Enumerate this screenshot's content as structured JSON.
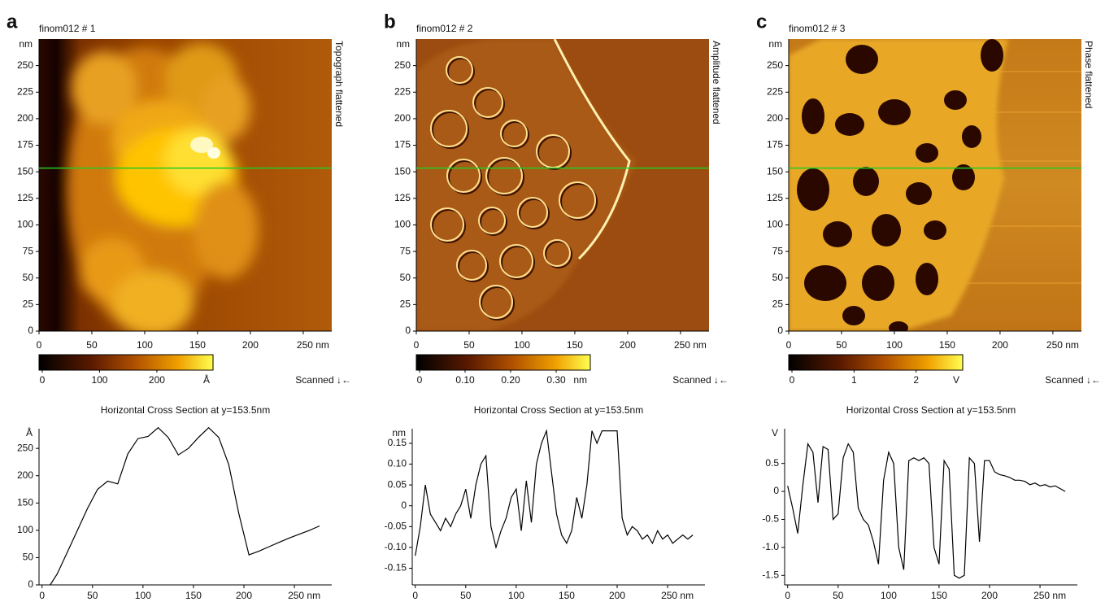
{
  "chart_data": [
    {
      "type": "image",
      "panel": "a",
      "title": "finom012 # 1",
      "side_label": "Topograph flattened",
      "y_unit": "nm",
      "xlim": [
        0,
        277
      ],
      "ylim": [
        0,
        275
      ],
      "xticks": [
        0,
        50,
        100,
        150,
        200,
        {
          "value": 250,
          "label": "250 nm"
        }
      ],
      "yticks": [
        0,
        25,
        50,
        75,
        100,
        125,
        150,
        175,
        200,
        225,
        250
      ],
      "marker_y": 153.5,
      "marker_color": "#22cc22",
      "colorbar": {
        "lim": [
          0,
          298
        ],
        "ticks": [
          0,
          100,
          200
        ],
        "unit": "Å"
      },
      "scan_label": "Scanned ↓←"
    },
    {
      "type": "line",
      "title": "Horizontal Cross Section at y=153.5nm",
      "y_unit": "Å",
      "color": "#000000",
      "xlim": [
        -3,
        287
      ],
      "ylim": [
        0,
        286
      ],
      "xticks": [
        0,
        50,
        100,
        150,
        200,
        {
          "value": 250,
          "label": "250 nm"
        }
      ],
      "yticks": [
        0,
        50,
        100,
        150,
        200,
        250
      ],
      "x": [
        8,
        15,
        25,
        35,
        45,
        55,
        65,
        75,
        85,
        95,
        105,
        115,
        125,
        135,
        145,
        155,
        165,
        175,
        185,
        195,
        205,
        215,
        225,
        235,
        245,
        255,
        265,
        275
      ],
      "values": [
        0,
        20,
        60,
        100,
        140,
        175,
        190,
        185,
        240,
        268,
        272,
        288,
        270,
        238,
        250,
        270,
        288,
        270,
        220,
        130,
        55,
        62,
        70,
        78,
        86,
        93,
        100,
        108
      ]
    },
    {
      "type": "image",
      "panel": "b",
      "title": "finom012 # 2",
      "side_label": "Amplitude flattened",
      "y_unit": "nm",
      "xlim": [
        0,
        277
      ],
      "ylim": [
        0,
        275
      ],
      "xticks": [
        0,
        50,
        100,
        150,
        200,
        {
          "value": 250,
          "label": "250 nm"
        }
      ],
      "yticks": [
        0,
        25,
        50,
        75,
        100,
        125,
        150,
        175,
        200,
        225,
        250
      ],
      "marker_y": 153.5,
      "marker_color": "#22cc22",
      "colorbar": {
        "lim": [
          0,
          0.375
        ],
        "ticks": [
          0,
          {
            "value": 0.1,
            "label": "0.10"
          },
          {
            "value": 0.2,
            "label": "0.20"
          },
          {
            "value": 0.3,
            "label": "0.30"
          }
        ],
        "unit": "nm"
      },
      "scan_label": "Scanned ↓←"
    },
    {
      "type": "line",
      "title": "Horizontal Cross Section at y=153.5nm",
      "y_unit": "nm",
      "color": "#000000",
      "xlim": [
        -3,
        287
      ],
      "ylim": [
        -0.19,
        0.185
      ],
      "xticks": [
        0,
        50,
        100,
        150,
        200,
        {
          "value": 250,
          "label": "250 nm"
        }
      ],
      "yticks": [
        -0.15,
        {
          "value": -0.1,
          "label": "-0.10"
        },
        -0.05,
        0,
        0.05,
        {
          "value": 0.1,
          "label": "0.10"
        },
        0.15
      ],
      "x": [
        0,
        5,
        10,
        15,
        20,
        25,
        30,
        35,
        40,
        45,
        50,
        55,
        60,
        65,
        70,
        75,
        80,
        85,
        90,
        95,
        100,
        105,
        110,
        115,
        120,
        125,
        130,
        135,
        140,
        145,
        150,
        155,
        160,
        165,
        170,
        175,
        180,
        185,
        190,
        195,
        200,
        205,
        210,
        215,
        220,
        225,
        230,
        235,
        240,
        245,
        250,
        255,
        260,
        265,
        270,
        275
      ],
      "values": [
        -0.12,
        -0.05,
        0.05,
        -0.02,
        -0.04,
        -0.06,
        -0.03,
        -0.05,
        -0.02,
        0,
        0.04,
        -0.03,
        0.05,
        0.1,
        0.12,
        -0.05,
        -0.1,
        -0.06,
        -0.03,
        0.02,
        0.04,
        -0.06,
        0.06,
        -0.04,
        0.1,
        0.15,
        0.18,
        0.08,
        -0.02,
        -0.07,
        -0.09,
        -0.06,
        0.02,
        -0.03,
        0.05,
        0.18,
        0.15,
        0.18,
        0.18,
        0.18,
        0.18,
        -0.03,
        -0.07,
        -0.05,
        -0.06,
        -0.08,
        -0.07,
        -0.09,
        -0.06,
        -0.08,
        -0.07,
        -0.09,
        -0.08,
        -0.07,
        -0.08,
        -0.07
      ]
    },
    {
      "type": "image",
      "panel": "c",
      "title": "finom012 # 3",
      "side_label": "Phase flattened",
      "y_unit": "nm",
      "xlim": [
        0,
        277
      ],
      "ylim": [
        0,
        275
      ],
      "xticks": [
        0,
        50,
        100,
        150,
        200,
        {
          "value": 250,
          "label": "250 nm"
        }
      ],
      "yticks": [
        0,
        25,
        50,
        75,
        100,
        125,
        150,
        175,
        200,
        225,
        250
      ],
      "marker_y": 153.5,
      "marker_color": "#22cc22",
      "colorbar": {
        "lim": [
          0,
          2.75
        ],
        "ticks": [
          0,
          1,
          2
        ],
        "unit": "V"
      },
      "scan_label": "Scanned ↓←"
    },
    {
      "type": "line",
      "title": "Horizontal Cross Section at y=153.5nm",
      "y_unit": "V",
      "color": "#000000",
      "xlim": [
        -3,
        287
      ],
      "ylim": [
        -1.67,
        1.12
      ],
      "xticks": [
        0,
        50,
        100,
        150,
        200,
        {
          "value": 250,
          "label": "250 nm"
        }
      ],
      "yticks": [
        -1.5,
        {
          "value": -1,
          "label": "-1.0"
        },
        -0.5,
        0,
        0.5
      ],
      "x": [
        0,
        5,
        10,
        15,
        20,
        25,
        30,
        35,
        40,
        45,
        50,
        55,
        60,
        65,
        70,
        75,
        80,
        85,
        90,
        95,
        100,
        105,
        110,
        115,
        120,
        125,
        130,
        135,
        140,
        145,
        150,
        155,
        160,
        165,
        170,
        175,
        180,
        185,
        190,
        195,
        200,
        205,
        210,
        215,
        220,
        225,
        230,
        235,
        240,
        245,
        250,
        255,
        260,
        265,
        270,
        275
      ],
      "values": [
        0.1,
        -0.3,
        -0.75,
        0.1,
        0.85,
        0.7,
        -0.2,
        0.8,
        0.75,
        -0.5,
        -0.4,
        0.6,
        0.85,
        0.7,
        -0.3,
        -0.5,
        -0.6,
        -0.9,
        -1.3,
        0.2,
        0.7,
        0.5,
        -1,
        -1.4,
        0.55,
        0.6,
        0.55,
        0.6,
        0.5,
        -1,
        -1.3,
        0.55,
        0.4,
        -1.5,
        -1.55,
        -1.5,
        0.6,
        0.5,
        -0.9,
        0.55,
        0.55,
        0.35,
        0.3,
        0.28,
        0.25,
        0.2,
        0.2,
        0.18,
        0.12,
        0.15,
        0.1,
        0.12,
        0.08,
        0.1,
        0.05,
        0
      ]
    }
  ]
}
